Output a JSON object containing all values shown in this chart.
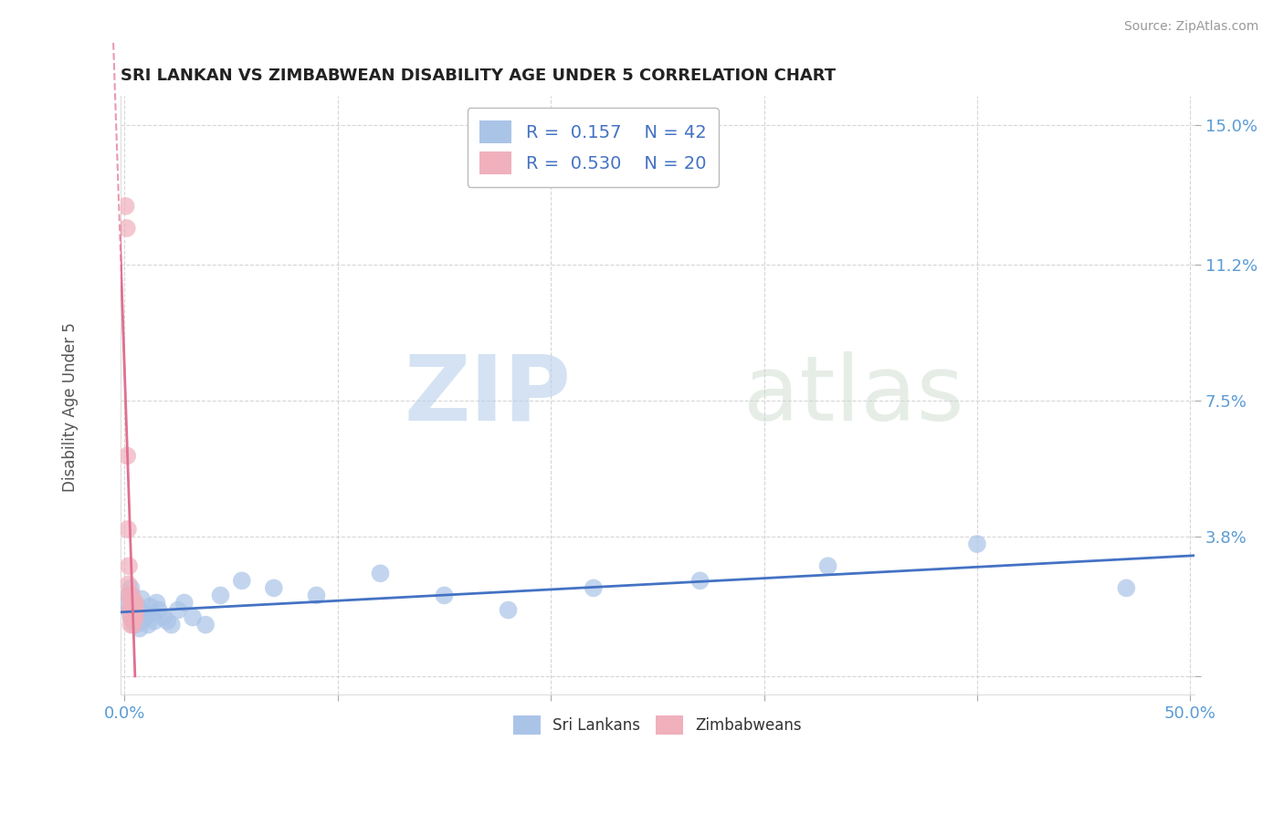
{
  "title": "SRI LANKAN VS ZIMBABWEAN DISABILITY AGE UNDER 5 CORRELATION CHART",
  "source": "Source: ZipAtlas.com",
  "ylabel": "Disability Age Under 5",
  "xlim": [
    -0.002,
    0.502
  ],
  "ylim": [
    -0.005,
    0.158
  ],
  "xtick_positions": [
    0.0,
    0.1,
    0.2,
    0.3,
    0.4,
    0.5
  ],
  "xticklabels_shown": [
    "0.0%",
    "",
    "",
    "",
    "",
    "50.0%"
  ],
  "ytick_positions": [
    0.0,
    0.038,
    0.075,
    0.112,
    0.15
  ],
  "ytick_labels": [
    "",
    "3.8%",
    "7.5%",
    "11.2%",
    "15.0%"
  ],
  "axis_label_color": "#5b9bd5",
  "background_color": "#ffffff",
  "watermark_zip": "ZIP",
  "watermark_atlas": "atlas",
  "legend_R1": "0.157",
  "legend_N1": "42",
  "legend_R2": "0.530",
  "legend_N2": "20",
  "sri_lankan_color": "#aac4e8",
  "zimbabwean_color": "#f0b0bc",
  "trend_sri_lankan_color": "#4472c4",
  "trend_zimbabwean_color": "#e07090",
  "sri_lankan_x": [
    0.001,
    0.002,
    0.002,
    0.003,
    0.003,
    0.004,
    0.004,
    0.005,
    0.005,
    0.006,
    0.006,
    0.007,
    0.007,
    0.008,
    0.008,
    0.009,
    0.01,
    0.011,
    0.012,
    0.013,
    0.014,
    0.015,
    0.016,
    0.018,
    0.02,
    0.022,
    0.025,
    0.028,
    0.032,
    0.038,
    0.045,
    0.055,
    0.07,
    0.09,
    0.12,
    0.15,
    0.18,
    0.22,
    0.27,
    0.33,
    0.4,
    0.47
  ],
  "sri_lankan_y": [
    0.02,
    0.018,
    0.022,
    0.016,
    0.024,
    0.015,
    0.02,
    0.017,
    0.014,
    0.019,
    0.016,
    0.013,
    0.018,
    0.015,
    0.021,
    0.017,
    0.016,
    0.014,
    0.019,
    0.017,
    0.015,
    0.02,
    0.018,
    0.016,
    0.015,
    0.014,
    0.018,
    0.02,
    0.016,
    0.014,
    0.022,
    0.026,
    0.024,
    0.022,
    0.028,
    0.022,
    0.018,
    0.024,
    0.026,
    0.03,
    0.036,
    0.024
  ],
  "zimbabwean_x": [
    0.0005,
    0.001,
    0.0012,
    0.0015,
    0.0018,
    0.002,
    0.002,
    0.0025,
    0.003,
    0.003,
    0.003,
    0.003,
    0.0035,
    0.004,
    0.004,
    0.004,
    0.004,
    0.005,
    0.005,
    0.005
  ],
  "zimbabwean_y": [
    0.128,
    0.122,
    0.06,
    0.04,
    0.025,
    0.022,
    0.03,
    0.018,
    0.02,
    0.016,
    0.018,
    0.014,
    0.022,
    0.016,
    0.018,
    0.02,
    0.014,
    0.016,
    0.018,
    0.02
  ]
}
